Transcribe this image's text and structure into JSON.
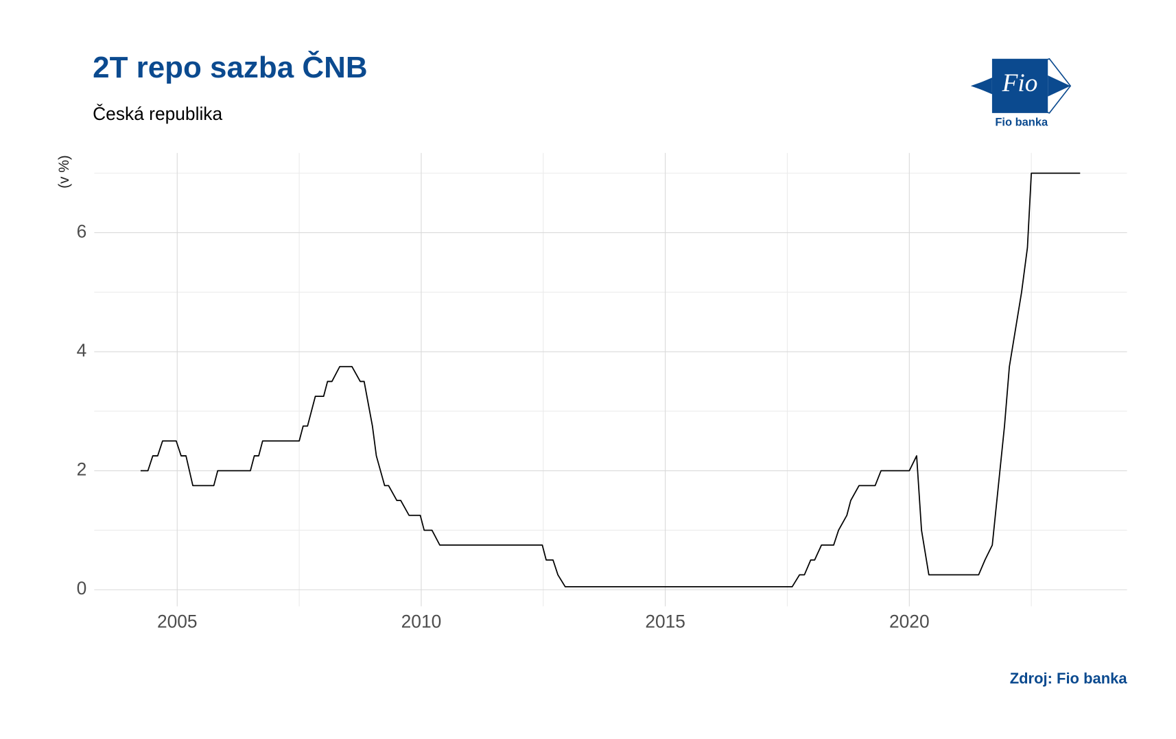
{
  "chart_data": {
    "type": "line",
    "title": "2T repo sazba ČNB",
    "subtitle": "Česká republika",
    "ylabel": "(v %)",
    "source": "Zdroj: Fio banka",
    "logo": {
      "mark": "Fio",
      "name": "Fio banka"
    },
    "color": "#000000",
    "grid": true,
    "xlim": [
      2003.3,
      2024.46
    ],
    "ylim": [
      -0.28,
      7.34
    ],
    "xticks": [
      2005,
      2010,
      2015,
      2020
    ],
    "yticks": [
      0,
      2,
      4,
      6
    ],
    "xminor": [
      2007.5,
      2012.5,
      2017.5,
      2022.5
    ],
    "yminor": [
      1,
      3,
      5,
      7
    ],
    "x": [
      2004.25,
      2004.4,
      2004.5,
      2004.6,
      2004.7,
      2004.98,
      2005.08,
      2005.18,
      2005.32,
      2005.75,
      2005.83,
      2006.5,
      2006.58,
      2006.67,
      2006.75,
      2007.5,
      2007.58,
      2007.67,
      2007.83,
      2008.0,
      2008.08,
      2008.17,
      2008.33,
      2008.58,
      2008.75,
      2008.83,
      2009.0,
      2009.08,
      2009.25,
      2009.33,
      2009.5,
      2009.58,
      2009.75,
      2009.98,
      2010.06,
      2010.22,
      2010.38,
      2012.48,
      2012.56,
      2012.7,
      2012.8,
      2012.95,
      2017.6,
      2017.75,
      2017.85,
      2017.98,
      2018.06,
      2018.2,
      2018.45,
      2018.55,
      2018.72,
      2018.8,
      2018.97,
      2019.3,
      2019.42,
      2020.0,
      2020.15,
      2020.25,
      2020.4,
      2021.42,
      2021.55,
      2021.7,
      2021.95,
      2022.05,
      2022.2,
      2022.3,
      2022.42,
      2022.5,
      2023.5
    ],
    "values": [
      2.0,
      2.0,
      2.25,
      2.25,
      2.5,
      2.5,
      2.25,
      2.25,
      1.75,
      1.75,
      2.0,
      2.0,
      2.25,
      2.25,
      2.5,
      2.5,
      2.75,
      2.75,
      3.25,
      3.25,
      3.5,
      3.5,
      3.75,
      3.75,
      3.5,
      3.5,
      2.75,
      2.25,
      1.75,
      1.75,
      1.5,
      1.5,
      1.25,
      1.25,
      1.0,
      1.0,
      0.75,
      0.75,
      0.5,
      0.5,
      0.25,
      0.05,
      0.05,
      0.25,
      0.25,
      0.5,
      0.5,
      0.75,
      0.75,
      1.0,
      1.25,
      1.5,
      1.75,
      1.75,
      2.0,
      2.0,
      2.25,
      1.0,
      0.25,
      0.25,
      0.5,
      0.75,
      2.75,
      3.75,
      4.5,
      5.0,
      5.75,
      7.0,
      7.0
    ]
  }
}
